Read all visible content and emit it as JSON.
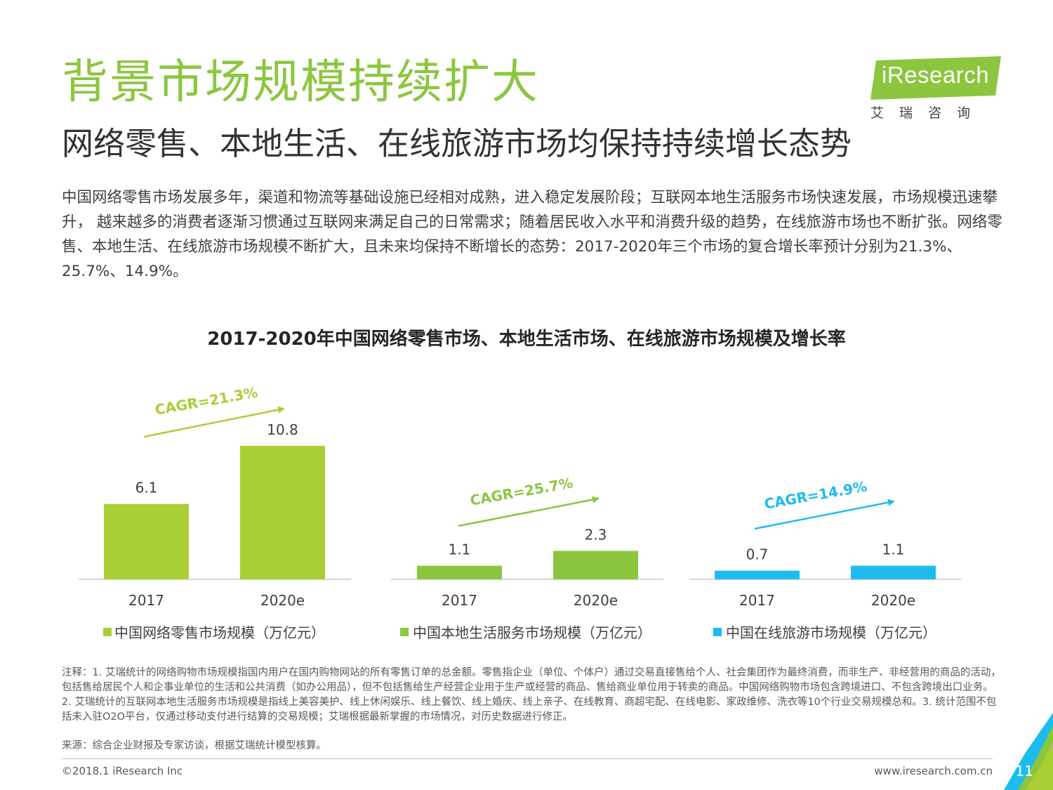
{
  "header": {
    "title": "背景市场规模持续扩大",
    "subtitle": "网络零售、本地生活、在线旅游市场均保持持续增长态势",
    "intro": "中国网络零售市场发展多年，渠道和物流等基础设施已经相对成熟，进入稳定发展阶段；互联网本地生活服务市场快速发展，市场规模迅速攀升， 越来越多的消费者逐渐习惯通过互联网来满足自己的日常需求；随着居民收入水平和消费升级的趋势，在线旅游市场也不断扩张。网络零售、本地生活、在线旅游市场规模不断扩大，且未来均保持不断增长的态势：2017-2020年三个市场的复合增长率预计分别为21.3%、25.7%、14.9%。"
  },
  "logo": {
    "text": "iResearch",
    "cn": "艾瑞咨询",
    "color": "#8cc63f"
  },
  "chart_data": {
    "type": "bar",
    "title": "2017-2020年中国网络零售市场、本地生活市场、在线旅游市场规模及增长率",
    "categories": [
      "2017",
      "2020e"
    ],
    "series": [
      {
        "name": "中国网络零售市场规模（万亿元）",
        "values": [
          6.1,
          10.8
        ],
        "labels": [
          "6.1",
          "10.8"
        ],
        "color": "#a9cf35",
        "cagr": "CAGR=21.3%"
      },
      {
        "name": "中国本地生活服务市场规模（万亿元）",
        "values": [
          1.1,
          2.3
        ],
        "labels": [
          "1.1",
          "2.3"
        ],
        "color": "#8cc63f",
        "cagr": "CAGR=25.7%"
      },
      {
        "name": "中国在线旅游市场规模（万亿元）",
        "values": [
          0.7,
          1.1
        ],
        "labels": [
          "0.7",
          "1.1"
        ],
        "color": "#1ebbee",
        "cagr": "CAGR=14.9%"
      }
    ],
    "legend_position": "bottom"
  },
  "notes": "注释：1. 艾瑞统计的网络购物市场规模指国内用户在国内购物网站的所有零售订单的总金额。零售指企业（单位、个体户）通过交易直接售给个人、社会集团作为最终消费，而非生产、非经营用的商品的活动，包括售给居民个人和企事业单位的生活和公共消费（如办公用品），但不包括售给生产经营企业用于生产或经营的商品、售给商业单位用于转卖的商品。中国网络购物市场包含跨境进口、不包含跨境出口业务。2. 艾瑞统计的互联网本地生活服务市场规模是指线上美容美护、线上休闲娱乐、线上餐饮、线上婚庆、线上亲子、在线教育、商超宅配、在线电影、家政维修、洗衣等10个行业交易规模总和。3. 统计范围不包括未入驻O2O平台，仅通过移动支付进行结算的交易规模；艾瑞根据最新掌握的市场情况，对历史数据进行修正。",
  "source": "来源：综合企业财报及专家访谈，根据艾瑞统计模型核算。",
  "footer": {
    "copyright": "©2018.1 iResearch Inc",
    "website": "www.iresearch.com.cn",
    "page": "11"
  }
}
